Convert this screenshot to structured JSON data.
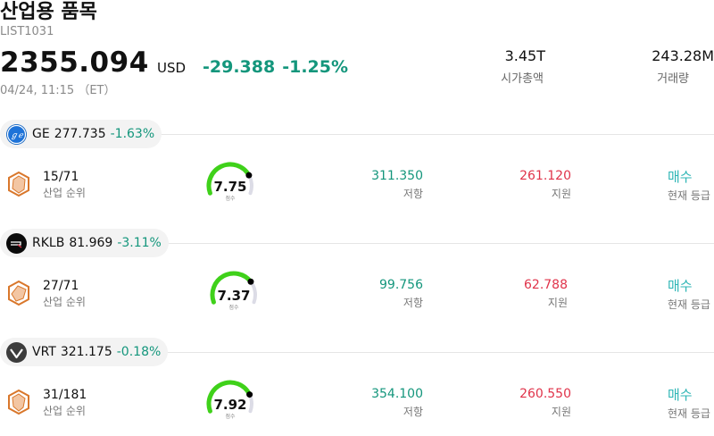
{
  "header": {
    "title": "산업용 품목",
    "code": "LIST1031",
    "price": "2355.094",
    "currency": "USD",
    "change_abs": "-29.388",
    "change_pct": "-1.25%",
    "timestamp": "04/24, 11:15 （ET）",
    "market_cap_value": "3.45T",
    "market_cap_label": "시가총액",
    "volume_value": "243.28M",
    "volume_label": "거래량"
  },
  "colors": {
    "down_green": "#14967c",
    "support_red": "#e0334a",
    "rating_teal": "#2cb5b5",
    "gauge_fill": "#3fd11a",
    "gauge_track": "#dcdce6"
  },
  "stocks": [
    {
      "ticker": "GE",
      "price": "277.735",
      "change": "-1.63%",
      "logo_icon": "ge-logo-icon",
      "rank": "15/71",
      "rank_label": "산업 순위",
      "score": "7.75",
      "score_value": 7.75,
      "score_small_label": "점수",
      "resistance": "311.350",
      "resistance_label": "저항",
      "support": "261.120",
      "support_label": "지원",
      "rating": "매수",
      "rating_label": "현재 등급"
    },
    {
      "ticker": "RKLB",
      "price": "81.969",
      "change": "-3.11%",
      "logo_icon": "rklb-logo-icon",
      "rank": "27/71",
      "rank_label": "산업 순위",
      "score": "7.37",
      "score_value": 7.37,
      "score_small_label": "점수",
      "resistance": "99.756",
      "resistance_label": "저항",
      "support": "62.788",
      "support_label": "지원",
      "rating": "매수",
      "rating_label": "현재 등급"
    },
    {
      "ticker": "VRT",
      "price": "321.175",
      "change": "-0.18%",
      "logo_icon": "vrt-logo-icon",
      "rank": "31/181",
      "rank_label": "산업 순위",
      "score": "7.92",
      "score_value": 7.92,
      "score_small_label": "점수",
      "resistance": "354.100",
      "resistance_label": "저항",
      "support": "260.550",
      "support_label": "지원",
      "rating": "매수",
      "rating_label": "현재 등급"
    }
  ]
}
